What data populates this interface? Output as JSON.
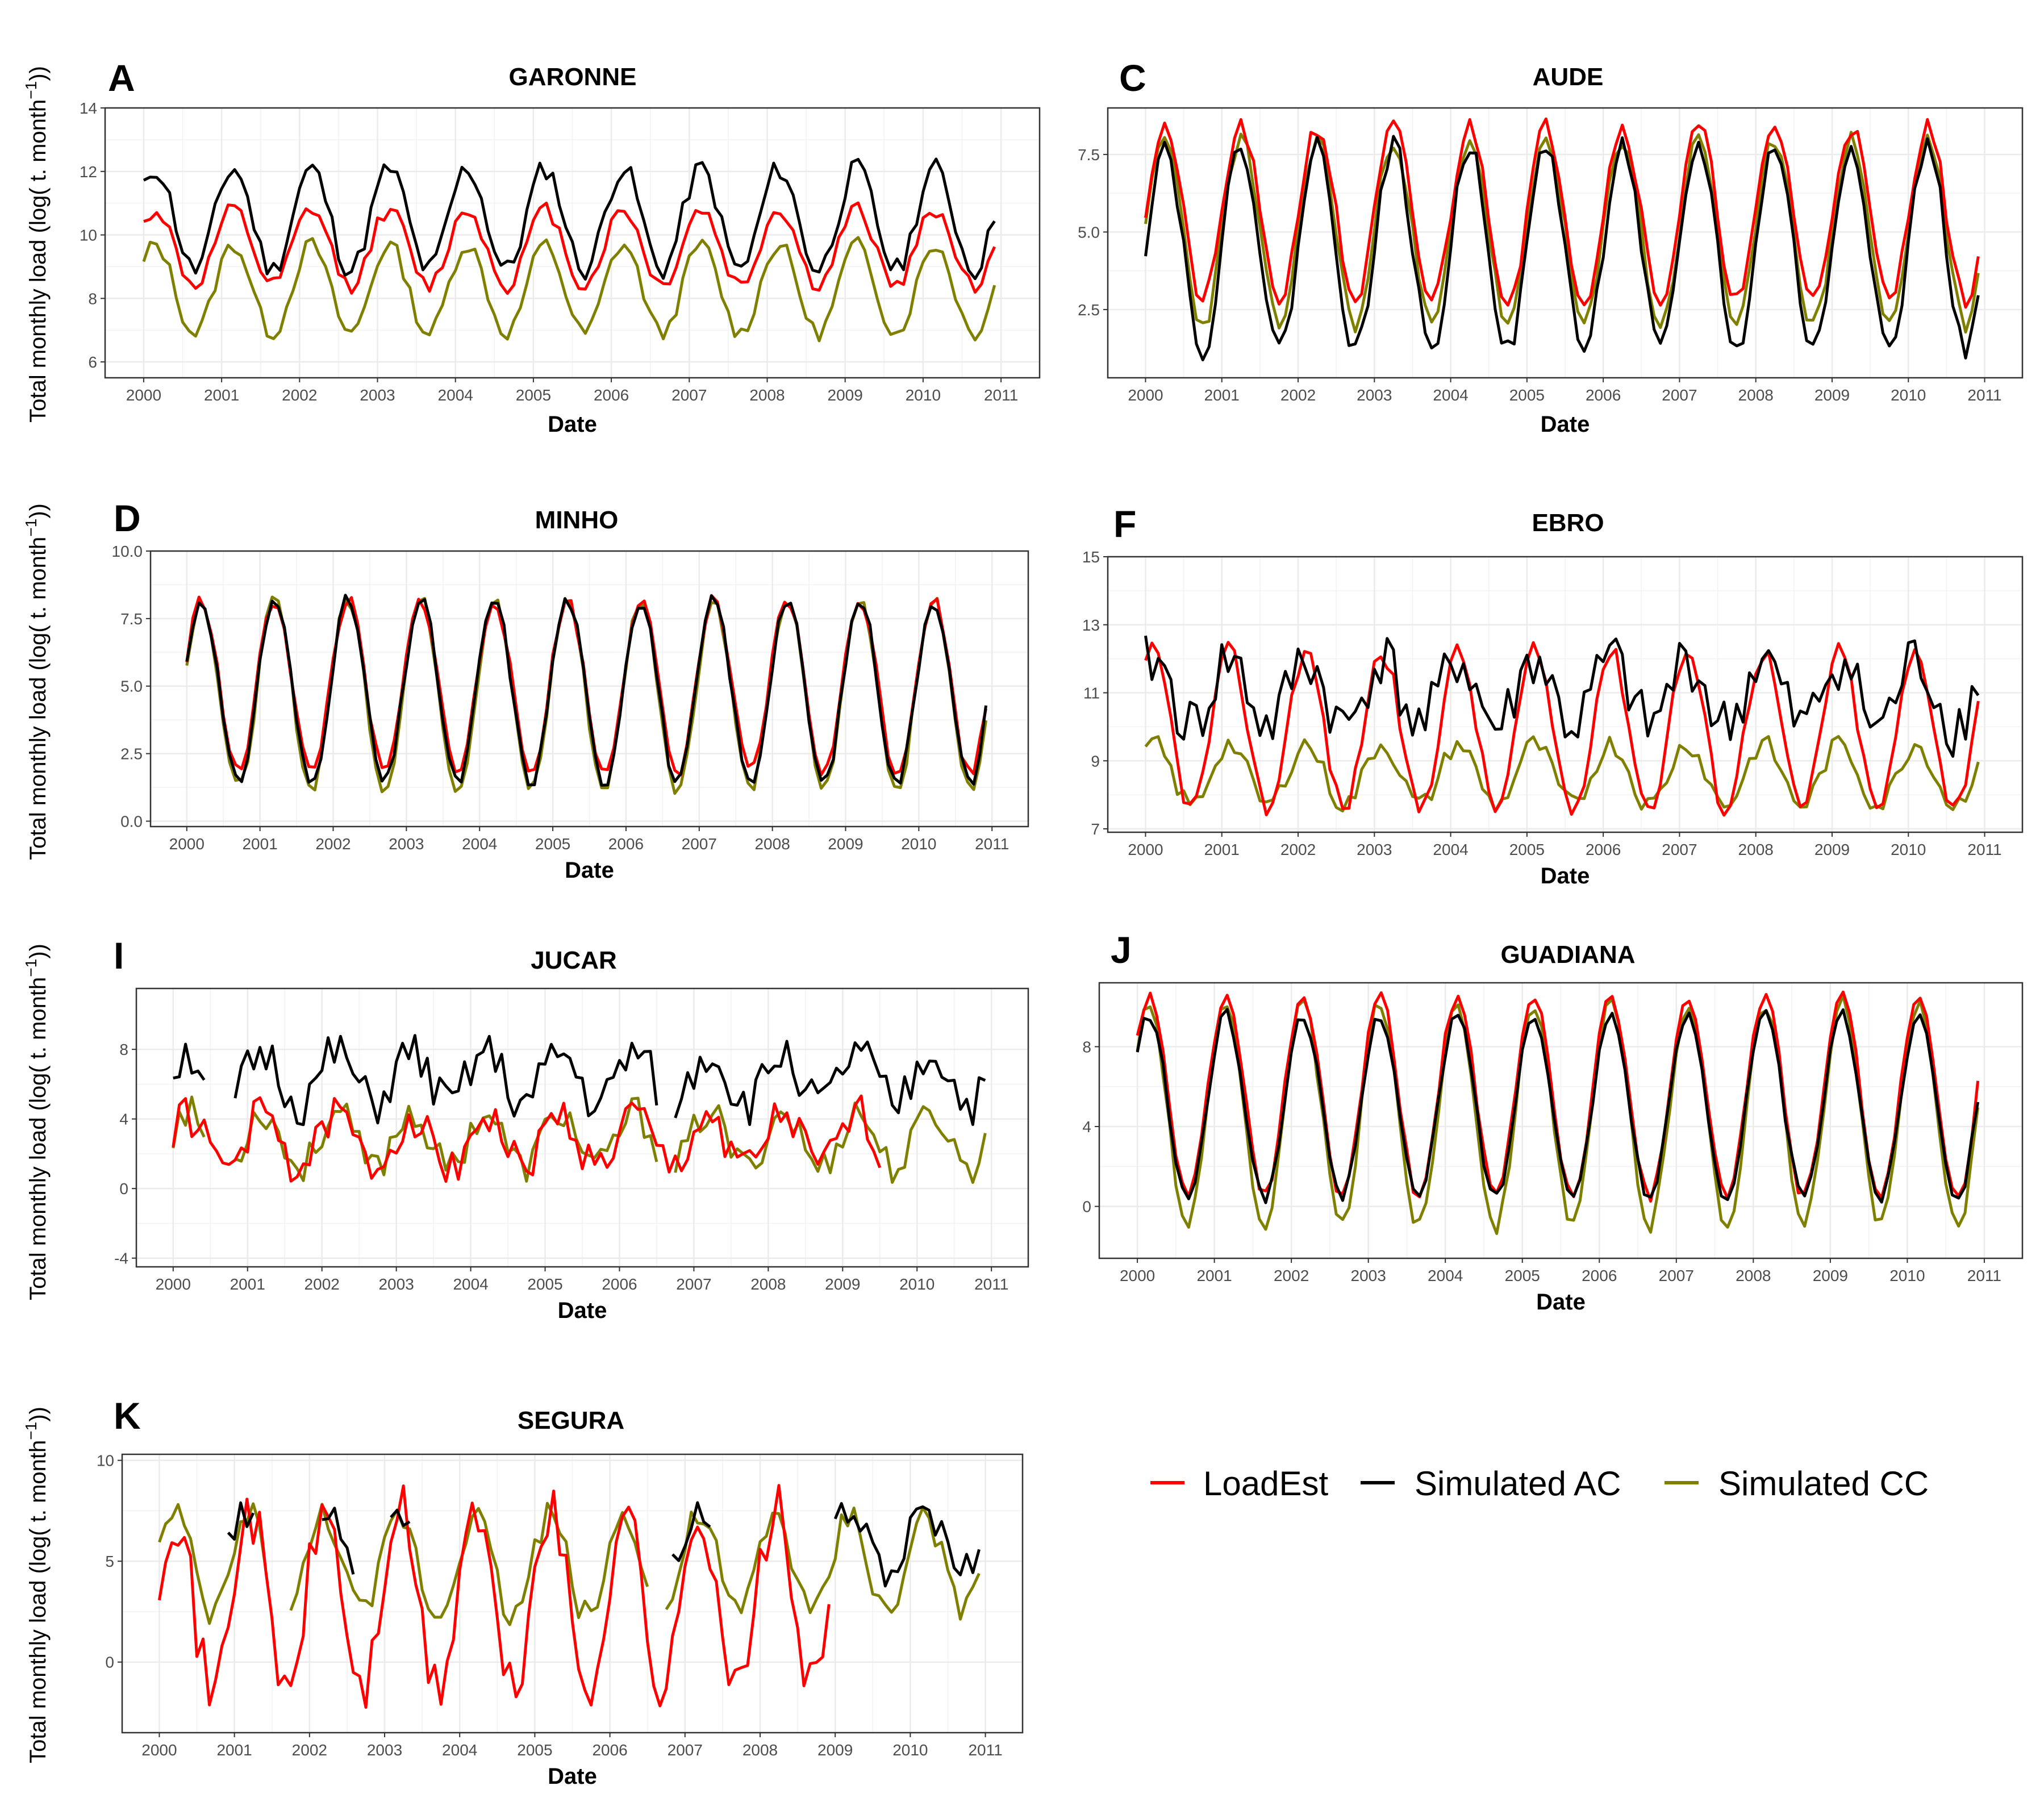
{
  "colors": {
    "LoadEst": "#ff0000",
    "Simulated AC": "#000000",
    "Simulated CC": "#808000",
    "grid": "#ebebeb",
    "tick": "#4d4d4d"
  },
  "legend": {
    "entries": [
      {
        "label": "LoadEst",
        "color": "#ff0000"
      },
      {
        "label": "Simulated AC",
        "color": "#000000"
      },
      {
        "label": "Simulated CC",
        "color": "#808000"
      }
    ]
  },
  "chart_data": [
    {
      "type": "line",
      "letter": "A",
      "title": "GARONNE",
      "xlabel": "Date",
      "ylabel": "Total monthly load (log( t. month",
      "ylabel_sup": "−1",
      "ylabel_end": "))",
      "xlim": [
        2000,
        2011
      ],
      "ylim": [
        5.5,
        14
      ],
      "yticks": [
        6,
        8,
        10,
        12,
        14
      ],
      "ytick_labels": [
        "6",
        "8",
        "10",
        "12",
        "14"
      ],
      "xticks": [
        2000,
        2001,
        2002,
        2003,
        2004,
        2005,
        2006,
        2007,
        2008,
        2009,
        2010,
        2011
      ],
      "xtick_labels": [
        "2000",
        "2001",
        "2002",
        "2003",
        "2004",
        "2005",
        "2006",
        "2007",
        "2008",
        "2009",
        "2010",
        "2011"
      ],
      "seasonal": {
        "start": 2000.0,
        "end": 2010.95,
        "min_phase": 0.65
      },
      "series": [
        {
          "name": "Simulated AC",
          "base": 10.5,
          "amp": 1.6,
          "noise": 0.35,
          "seed": 11
        },
        {
          "name": "LoadEst",
          "base": 9.6,
          "amp": 1.2,
          "noise": 0.25,
          "seed": 12
        },
        {
          "name": "Simulated CC",
          "base": 8.3,
          "amp": 1.4,
          "noise": 0.25,
          "seed": 13
        }
      ]
    },
    {
      "type": "line",
      "letter": "C",
      "title": "AUDE",
      "xlabel": "Date",
      "ylabel": "",
      "ylabel_sup": "",
      "ylabel_end": "",
      "xlim": [
        2000,
        2011
      ],
      "ylim": [
        0.3,
        9.0
      ],
      "yticks": [
        2.5,
        5.0,
        7.5
      ],
      "ytick_labels": [
        "2.5",
        "5.0",
        "7.5"
      ],
      "xticks": [
        2000,
        2001,
        2002,
        2003,
        2004,
        2005,
        2006,
        2007,
        2008,
        2009,
        2010,
        2011
      ],
      "xtick_labels": [
        "2000",
        "2001",
        "2002",
        "2003",
        "2004",
        "2005",
        "2006",
        "2007",
        "2008",
        "2009",
        "2010",
        "2011"
      ],
      "seasonal": {
        "start": 2000.0,
        "end": 2010.95,
        "min_phase": 0.75
      },
      "series": [
        {
          "name": "LoadEst",
          "base": 5.6,
          "amp": 2.8,
          "noise": 0.3,
          "seed": 21
        },
        {
          "name": "Simulated AC",
          "base": 4.5,
          "amp": 3.3,
          "noise": 0.35,
          "seed": 22
        },
        {
          "name": "Simulated CC",
          "base": 5.0,
          "amp": 3.0,
          "noise": 0.3,
          "seed": 23
        }
      ]
    },
    {
      "type": "line",
      "letter": "D",
      "title": "MINHO",
      "xlabel": "Date",
      "ylabel": "Total monthly load (log( t. month",
      "ylabel_sup": "−1",
      "ylabel_end": "))",
      "xlim": [
        2000,
        2011
      ],
      "ylim": [
        -0.2,
        10.0
      ],
      "yticks": [
        0.0,
        2.5,
        5.0,
        7.5,
        10.0
      ],
      "ytick_labels": [
        "0.0",
        "2.5",
        "5.0",
        "7.5",
        "10.0"
      ],
      "xticks": [
        2000,
        2001,
        2002,
        2003,
        2004,
        2005,
        2006,
        2007,
        2008,
        2009,
        2010,
        2011
      ],
      "xtick_labels": [
        "2000",
        "2001",
        "2002",
        "2003",
        "2004",
        "2005",
        "2006",
        "2007",
        "2008",
        "2009",
        "2010",
        "2011"
      ],
      "seasonal": {
        "start": 2000.0,
        "end": 2010.95,
        "min_phase": 0.7
      },
      "series": [
        {
          "name": "Simulated AC",
          "base": 4.8,
          "amp": 3.4,
          "noise": 0.25,
          "seed": 31
        },
        {
          "name": "Simulated CC",
          "base": 4.7,
          "amp": 3.5,
          "noise": 0.25,
          "seed": 32
        },
        {
          "name": "LoadEst",
          "base": 5.0,
          "amp": 3.2,
          "noise": 0.25,
          "seed": 33
        }
      ]
    },
    {
      "type": "line",
      "letter": "F",
      "title": "EBRO",
      "xlabel": "Date",
      "ylabel": "",
      "ylabel_sup": "",
      "ylabel_end": "",
      "xlim": [
        2000,
        2011
      ],
      "ylim": [
        6.9,
        15.0
      ],
      "yticks": [
        7,
        9,
        11,
        13,
        15
      ],
      "ytick_labels": [
        "7",
        "9",
        "11",
        "13",
        "15"
      ],
      "xticks": [
        2000,
        2001,
        2002,
        2003,
        2004,
        2005,
        2006,
        2007,
        2008,
        2009,
        2010,
        2011
      ],
      "xtick_labels": [
        "2000",
        "2001",
        "2002",
        "2003",
        "2004",
        "2005",
        "2006",
        "2007",
        "2008",
        "2009",
        "2010",
        "2011"
      ],
      "seasonal": {
        "start": 2000.0,
        "end": 2010.95,
        "min_phase": 0.6
      },
      "series": [
        {
          "name": "Simulated AC",
          "base": 11.0,
          "amp": 1.0,
          "noise": 0.9,
          "seed": 41
        },
        {
          "name": "LoadEst",
          "base": 9.9,
          "amp": 2.3,
          "noise": 0.3,
          "seed": 42
        },
        {
          "name": "Simulated CC",
          "base": 8.6,
          "amp": 0.9,
          "noise": 0.3,
          "seed": 43
        }
      ]
    },
    {
      "type": "line",
      "letter": "I",
      "title": "JUCAR",
      "xlabel": "Date",
      "ylabel": "Total monthly load (log( t. month",
      "ylabel_sup": "−1",
      "ylabel_end": "))",
      "xlim": [
        2000,
        2011
      ],
      "ylim": [
        -4.5,
        11.5
      ],
      "yticks": [
        -4,
        0,
        4,
        8
      ],
      "ytick_labels": [
        "-4",
        "0",
        "4",
        "8"
      ],
      "xticks": [
        2000,
        2001,
        2002,
        2003,
        2004,
        2005,
        2006,
        2007,
        2008,
        2009,
        2010,
        2011
      ],
      "xtick_labels": [
        "2000",
        "2001",
        "2002",
        "2003",
        "2004",
        "2005",
        "2006",
        "2007",
        "2008",
        "2009",
        "2010",
        "2011"
      ],
      "seasonal": {
        "start": 2000.0,
        "end": 2010.95,
        "min_phase": 0.7
      },
      "series": [
        {
          "name": "Simulated AC",
          "base": 6.3,
          "amp": 1.5,
          "noise": 1.3,
          "seed": 51,
          "gaps": [
            [
              2000.45,
              2000.8
            ],
            [
              2006.5,
              2006.7
            ]
          ]
        },
        {
          "name": "LoadEst",
          "base": 2.7,
          "amp": 1.5,
          "noise": 1.2,
          "seed": 52,
          "gaps": [
            [
              2009.5,
              2011.0
            ]
          ]
        },
        {
          "name": "Simulated CC",
          "base": 2.8,
          "amp": 1.6,
          "noise": 1.0,
          "seed": 53,
          "gaps": [
            [
              2000.45,
              2000.8
            ],
            [
              2006.5,
              2006.7
            ]
          ]
        }
      ]
    },
    {
      "type": "line",
      "letter": "J",
      "title": "GUADIANA",
      "xlabel": "Date",
      "ylabel": "",
      "ylabel_sup": "",
      "ylabel_end": "",
      "xlim": [
        2000,
        2011
      ],
      "ylim": [
        -2.6,
        11.2
      ],
      "yticks": [
        0,
        4,
        8
      ],
      "ytick_labels": [
        "0",
        "4",
        "8"
      ],
      "xticks": [
        2000,
        2001,
        2002,
        2003,
        2004,
        2005,
        2006,
        2007,
        2008,
        2009,
        2010,
        2011
      ],
      "xtick_labels": [
        "2000",
        "2001",
        "2002",
        "2003",
        "2004",
        "2005",
        "2006",
        "2007",
        "2008",
        "2009",
        "2010",
        "2011"
      ],
      "seasonal": {
        "start": 2000.0,
        "end": 2010.95,
        "min_phase": 0.65
      },
      "series": [
        {
          "name": "LoadEst",
          "base": 5.5,
          "amp": 5.0,
          "noise": 0.3,
          "seed": 61
        },
        {
          "name": "Simulated AC",
          "base": 5.0,
          "amp": 4.6,
          "noise": 0.3,
          "seed": 62
        },
        {
          "name": "Simulated CC",
          "base": 4.6,
          "amp": 5.6,
          "noise": 0.4,
          "seed": 63
        }
      ]
    },
    {
      "type": "line",
      "letter": "K",
      "title": "SEGURA",
      "xlabel": "Date",
      "ylabel": "Total monthly load (log( t. month",
      "ylabel_sup": "−1",
      "ylabel_end": "))",
      "xlim": [
        2000,
        2011
      ],
      "ylim": [
        -3.5,
        10.3
      ],
      "yticks": [
        0,
        5,
        10
      ],
      "ytick_labels": [
        "0",
        "5",
        "10"
      ],
      "xticks": [
        2000,
        2001,
        2002,
        2003,
        2004,
        2005,
        2006,
        2007,
        2008,
        2009,
        2010,
        2011
      ],
      "xtick_labels": [
        "2000",
        "2001",
        "2002",
        "2003",
        "2004",
        "2005",
        "2006",
        "2007",
        "2008",
        "2009",
        "2010",
        "2011"
      ],
      "seasonal": {
        "start": 2000.0,
        "end": 2010.95,
        "min_phase": 0.7
      },
      "series": [
        {
          "name": "LoadEst",
          "base": 3.0,
          "amp": 4.5,
          "noise": 1.5,
          "seed": 71,
          "gaps": [
            [
              2008.95,
              2011.0
            ]
          ]
        },
        {
          "name": "Simulated AC",
          "base": 6.0,
          "amp": 1.5,
          "noise": 0.8,
          "seed": 72,
          "gaps": [
            [
              2000.0,
              2000.9
            ],
            [
              2001.3,
              2002.1
            ],
            [
              2002.6,
              2003.0
            ],
            [
              2003.4,
              2006.75
            ],
            [
              2007.35,
              2008.95
            ]
          ]
        },
        {
          "name": "Simulated CC",
          "base": 4.8,
          "amp": 2.5,
          "noise": 0.8,
          "seed": 73,
          "gaps": [
            [
              2001.45,
              2001.7
            ],
            [
              2006.55,
              2006.7
            ]
          ]
        }
      ]
    }
  ]
}
